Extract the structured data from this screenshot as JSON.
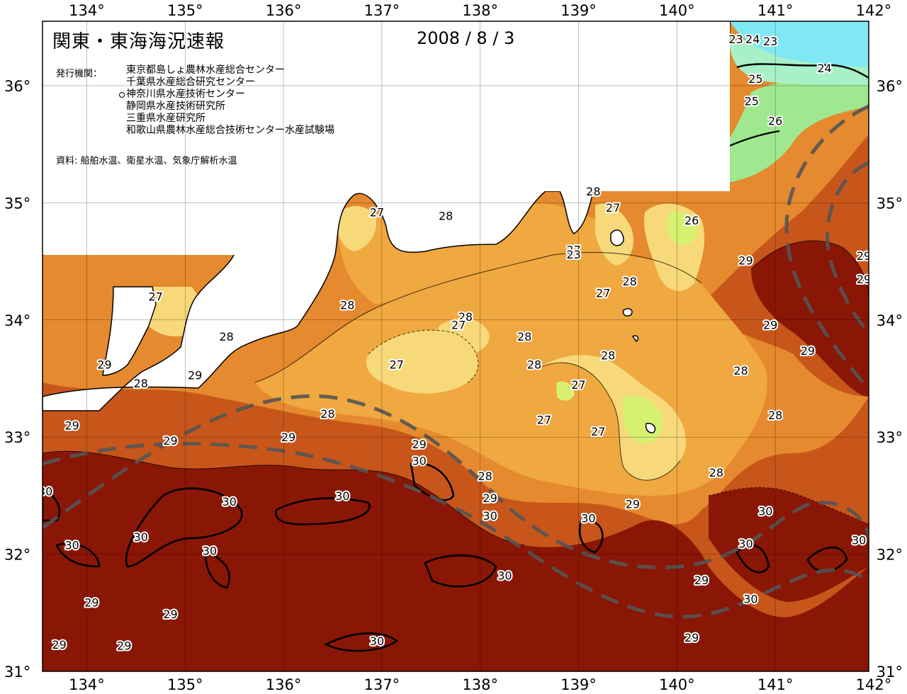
{
  "header": {
    "title": "関東・東海海況速報",
    "date": "2008 / 8 / 3"
  },
  "issuers": {
    "label": "発行機関：",
    "items": [
      {
        "name": "東京都島しょ農林水産総合センター",
        "marked": false
      },
      {
        "name": "千葉県水産総合研究センター",
        "marked": false
      },
      {
        "name": "神奈川県水産技術センター",
        "marked": true
      },
      {
        "name": "静岡県水産技術研究所",
        "marked": false
      },
      {
        "name": "三重県水産研究所",
        "marked": false
      },
      {
        "name": "和歌山県農林水産総合技術センター水産試験場",
        "marked": false
      }
    ]
  },
  "source_note": "資料: 船舶水温、衛星水温、気象庁解析水温",
  "axes": {
    "longitude_ticks": [
      "134°",
      "135°",
      "136°",
      "137°",
      "138°",
      "139°",
      "140°",
      "141°",
      "142°"
    ],
    "latitude_ticks": [
      "36°",
      "35°",
      "34°",
      "33°",
      "32°",
      "31°"
    ]
  },
  "colors": {
    "t23": "#7fe8f2",
    "t24": "#a8f0c8",
    "t25": "#a0e890",
    "t26": "#d8f070",
    "t27": "#f7d97a",
    "t28": "#f0a840",
    "t28b": "#e58a2e",
    "t29": "#c8561a",
    "t30": "#8a1606",
    "land": "#ffffff",
    "current": "#555555"
  },
  "temperature_labels": [
    {
      "v": "23",
      "lon": 140.6,
      "lat": 36.4
    },
    {
      "v": "24",
      "lon": 140.77,
      "lat": 36.4
    },
    {
      "v": "23",
      "lon": 140.95,
      "lat": 36.38
    },
    {
      "v": "24",
      "lon": 141.5,
      "lat": 36.15
    },
    {
      "v": "25",
      "lon": 140.8,
      "lat": 36.06
    },
    {
      "v": "25",
      "lon": 140.76,
      "lat": 35.87
    },
    {
      "v": "26",
      "lon": 141.0,
      "lat": 35.7
    },
    {
      "v": "28",
      "lon": 139.15,
      "lat": 35.1
    },
    {
      "v": "27",
      "lon": 139.35,
      "lat": 34.96
    },
    {
      "v": "26",
      "lon": 140.15,
      "lat": 34.85
    },
    {
      "v": "28",
      "lon": 137.65,
      "lat": 34.89
    },
    {
      "v": "27",
      "lon": 136.95,
      "lat": 34.92
    },
    {
      "v": "27",
      "lon": 138.95,
      "lat": 34.6
    },
    {
      "v": "23",
      "lon": 138.95,
      "lat": 34.56
    },
    {
      "v": "29",
      "lon": 140.7,
      "lat": 34.51
    },
    {
      "v": "29",
      "lon": 141.9,
      "lat": 34.55
    },
    {
      "v": "29",
      "lon": 141.9,
      "lat": 34.35
    },
    {
      "v": "28",
      "lon": 139.52,
      "lat": 34.33
    },
    {
      "v": "27",
      "lon": 139.25,
      "lat": 34.23
    },
    {
      "v": "27",
      "lon": 134.7,
      "lat": 34.2
    },
    {
      "v": "28",
      "lon": 136.65,
      "lat": 34.13
    },
    {
      "v": "28",
      "lon": 137.85,
      "lat": 34.03
    },
    {
      "v": "27",
      "lon": 137.78,
      "lat": 33.96
    },
    {
      "v": "29",
      "lon": 140.95,
      "lat": 33.96
    },
    {
      "v": "28",
      "lon": 135.42,
      "lat": 33.86
    },
    {
      "v": "28",
      "lon": 138.45,
      "lat": 33.86
    },
    {
      "v": "29",
      "lon": 141.33,
      "lat": 33.74
    },
    {
      "v": "28",
      "lon": 139.3,
      "lat": 33.7
    },
    {
      "v": "27",
      "lon": 137.15,
      "lat": 33.62
    },
    {
      "v": "28",
      "lon": 138.55,
      "lat": 33.62
    },
    {
      "v": "29",
      "lon": 134.18,
      "lat": 33.62
    },
    {
      "v": "28",
      "lon": 140.65,
      "lat": 33.57
    },
    {
      "v": "29",
      "lon": 135.1,
      "lat": 33.53
    },
    {
      "v": "28",
      "lon": 134.55,
      "lat": 33.46
    },
    {
      "v": "27",
      "lon": 139.0,
      "lat": 33.45
    },
    {
      "v": "28",
      "lon": 136.45,
      "lat": 33.2
    },
    {
      "v": "28",
      "lon": 141.0,
      "lat": 33.19
    },
    {
      "v": "27",
      "lon": 138.65,
      "lat": 33.15
    },
    {
      "v": "27",
      "lon": 139.2,
      "lat": 33.05
    },
    {
      "v": "29",
      "lon": 133.85,
      "lat": 33.1
    },
    {
      "v": "29",
      "lon": 134.85,
      "lat": 32.97
    },
    {
      "v": "29",
      "lon": 136.05,
      "lat": 33.0
    },
    {
      "v": "29",
      "lon": 137.38,
      "lat": 32.94
    },
    {
      "v": "30",
      "lon": 137.38,
      "lat": 32.8
    },
    {
      "v": "28",
      "lon": 138.05,
      "lat": 32.67
    },
    {
      "v": "28",
      "lon": 140.4,
      "lat": 32.7
    },
    {
      "v": "30",
      "lon": 133.58,
      "lat": 32.54
    },
    {
      "v": "29",
      "lon": 138.1,
      "lat": 32.48
    },
    {
      "v": "30",
      "lon": 135.45,
      "lat": 32.45
    },
    {
      "v": "30",
      "lon": 136.6,
      "lat": 32.5
    },
    {
      "v": "29",
      "lon": 139.55,
      "lat": 32.43
    },
    {
      "v": "30",
      "lon": 140.9,
      "lat": 32.37
    },
    {
      "v": "30",
      "lon": 138.1,
      "lat": 32.33
    },
    {
      "v": "30",
      "lon": 139.1,
      "lat": 32.31
    },
    {
      "v": "30",
      "lon": 134.55,
      "lat": 32.15
    },
    {
      "v": "30",
      "lon": 133.85,
      "lat": 32.08
    },
    {
      "v": "30",
      "lon": 140.7,
      "lat": 32.09
    },
    {
      "v": "30",
      "lon": 141.85,
      "lat": 32.12
    },
    {
      "v": "30",
      "lon": 135.25,
      "lat": 32.03
    },
    {
      "v": "30",
      "lon": 138.25,
      "lat": 31.82
    },
    {
      "v": "29",
      "lon": 140.25,
      "lat": 31.78
    },
    {
      "v": "30",
      "lon": 140.75,
      "lat": 31.62
    },
    {
      "v": "29",
      "lon": 134.05,
      "lat": 31.59
    },
    {
      "v": "29",
      "lon": 134.85,
      "lat": 31.49
    },
    {
      "v": "29",
      "lon": 140.15,
      "lat": 31.29
    },
    {
      "v": "30",
      "lon": 136.95,
      "lat": 31.26
    },
    {
      "v": "29",
      "lon": 133.72,
      "lat": 31.23
    },
    {
      "v": "29",
      "lon": 134.38,
      "lat": 31.22
    }
  ]
}
